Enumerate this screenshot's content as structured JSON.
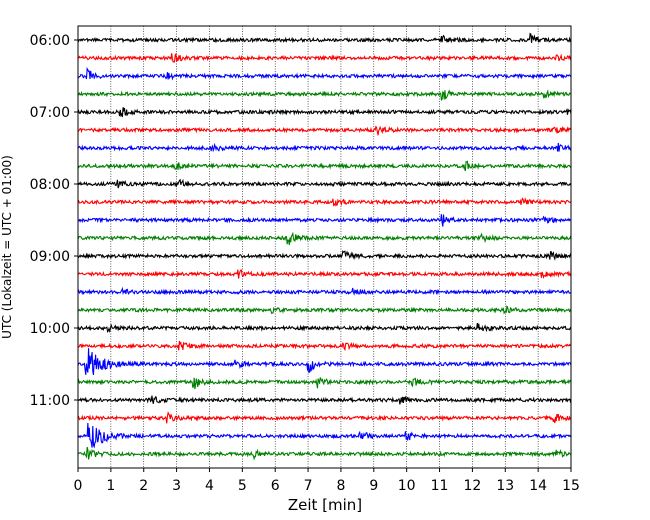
{
  "chart_data": {
    "type": "line",
    "title": "",
    "xlabel": "Zeit  [min]",
    "ylabel": "UTC (Lokalzeit = UTC + 01:00)",
    "xlim": [
      0,
      15
    ],
    "x_ticks": [
      "0",
      "1",
      "2",
      "3",
      "4",
      "5",
      "6",
      "7",
      "8",
      "9",
      "10",
      "11",
      "12",
      "13",
      "14",
      "15"
    ],
    "y_ticks": [
      {
        "label": "06:00",
        "row": 0
      },
      {
        "label": "07:00",
        "row": 4
      },
      {
        "label": "08:00",
        "row": 8
      },
      {
        "label": "09:00",
        "row": 12
      },
      {
        "label": "10:00",
        "row": 16
      },
      {
        "label": "11:00",
        "row": 20
      }
    ],
    "vertical_grid": "dotted, every 1 min",
    "row_interval_min": 15,
    "row_count": 24,
    "colors": [
      "#000000",
      "#ff0000",
      "#0000ff",
      "#008000"
    ],
    "traces": [
      {
        "row": 0,
        "start": "06:00",
        "color": "#000000",
        "events": [
          {
            "t": 11.1,
            "amp": 4
          },
          {
            "t": 13.8,
            "amp": 5
          }
        ]
      },
      {
        "row": 1,
        "start": "06:15",
        "color": "#ff0000",
        "events": [
          {
            "t": 2.9,
            "amp": 5
          },
          {
            "t": 14.6,
            "amp": 3
          }
        ]
      },
      {
        "row": 2,
        "start": "06:30",
        "color": "#0000ff",
        "events": [
          {
            "t": 0.3,
            "amp": 6
          },
          {
            "t": 2.7,
            "amp": 3
          }
        ]
      },
      {
        "row": 3,
        "start": "06:45",
        "color": "#008000",
        "events": [
          {
            "t": 11.1,
            "amp": 5
          },
          {
            "t": 14.2,
            "amp": 3
          }
        ]
      },
      {
        "row": 4,
        "start": "07:00",
        "color": "#000000",
        "events": [
          {
            "t": 1.3,
            "amp": 5
          },
          {
            "t": 14.9,
            "amp": 3
          }
        ]
      },
      {
        "row": 5,
        "start": "07:15",
        "color": "#ff0000",
        "events": [
          {
            "t": 9.1,
            "amp": 5
          },
          {
            "t": 14.5,
            "amp": 3
          }
        ]
      },
      {
        "row": 6,
        "start": "07:30",
        "color": "#0000ff",
        "events": [
          {
            "t": 4.1,
            "amp": 3
          },
          {
            "t": 14.6,
            "amp": 4
          }
        ]
      },
      {
        "row": 7,
        "start": "07:45",
        "color": "#008000",
        "events": [
          {
            "t": 3.0,
            "amp": 3
          },
          {
            "t": 11.8,
            "amp": 4
          }
        ]
      },
      {
        "row": 8,
        "start": "08:00",
        "color": "#000000",
        "events": [
          {
            "t": 1.2,
            "amp": 3
          },
          {
            "t": 3.1,
            "amp": 3
          }
        ]
      },
      {
        "row": 9,
        "start": "08:15",
        "color": "#ff0000",
        "events": [
          {
            "t": 7.8,
            "amp": 3
          },
          {
            "t": 13.5,
            "amp": 3
          }
        ]
      },
      {
        "row": 10,
        "start": "08:30",
        "color": "#0000ff",
        "events": [
          {
            "t": 11.1,
            "amp": 6
          },
          {
            "t": 14.2,
            "amp": 3
          }
        ]
      },
      {
        "row": 11,
        "start": "08:45",
        "color": "#008000",
        "events": [
          {
            "t": 6.4,
            "amp": 8
          },
          {
            "t": 12.3,
            "amp": 3
          }
        ]
      },
      {
        "row": 12,
        "start": "09:00",
        "color": "#000000",
        "events": [
          {
            "t": 8.1,
            "amp": 4
          },
          {
            "t": 14.4,
            "amp": 3
          }
        ]
      },
      {
        "row": 13,
        "start": "09:15",
        "color": "#ff0000",
        "events": [
          {
            "t": 4.9,
            "amp": 4
          },
          {
            "t": 14.1,
            "amp": 4
          }
        ]
      },
      {
        "row": 14,
        "start": "09:30",
        "color": "#0000ff",
        "events": [
          {
            "t": 1.4,
            "amp": 3
          },
          {
            "t": 8.4,
            "amp": 3
          }
        ]
      },
      {
        "row": 15,
        "start": "09:45",
        "color": "#008000",
        "events": [
          {
            "t": 5.9,
            "amp": 3
          },
          {
            "t": 13.0,
            "amp": 3
          }
        ]
      },
      {
        "row": 16,
        "start": "10:00",
        "color": "#000000",
        "events": [
          {
            "t": 0.9,
            "amp": 3
          },
          {
            "t": 12.2,
            "amp": 5
          }
        ]
      },
      {
        "row": 17,
        "start": "10:15",
        "color": "#ff0000",
        "events": [
          {
            "t": 3.1,
            "amp": 4
          },
          {
            "t": 8.1,
            "amp": 3
          }
        ]
      },
      {
        "row": 18,
        "start": "10:30",
        "color": "#0000ff",
        "events": [
          {
            "t": 0.25,
            "amp": 20
          },
          {
            "t": 7.0,
            "amp": 9
          },
          {
            "t": 4.8,
            "amp": 4
          }
        ]
      },
      {
        "row": 19,
        "start": "10:45",
        "color": "#008000",
        "events": [
          {
            "t": 3.5,
            "amp": 8
          },
          {
            "t": 7.3,
            "amp": 5
          },
          {
            "t": 10.2,
            "amp": 4
          }
        ]
      },
      {
        "row": 20,
        "start": "11:00",
        "color": "#000000",
        "events": [
          {
            "t": 2.3,
            "amp": 3
          },
          {
            "t": 9.8,
            "amp": 3
          }
        ]
      },
      {
        "row": 21,
        "start": "11:15",
        "color": "#ff0000",
        "events": [
          {
            "t": 2.7,
            "amp": 5
          },
          {
            "t": 14.5,
            "amp": 5
          }
        ]
      },
      {
        "row": 22,
        "start": "11:30",
        "color": "#0000ff",
        "events": [
          {
            "t": 0.35,
            "amp": 16
          },
          {
            "t": 8.6,
            "amp": 5
          },
          {
            "t": 10.0,
            "amp": 4
          }
        ]
      },
      {
        "row": 23,
        "start": "11:45",
        "color": "#008000",
        "events": [
          {
            "t": 0.3,
            "amp": 6
          },
          {
            "t": 5.4,
            "amp": 3
          },
          {
            "t": 14.6,
            "amp": 3
          }
        ]
      }
    ]
  }
}
